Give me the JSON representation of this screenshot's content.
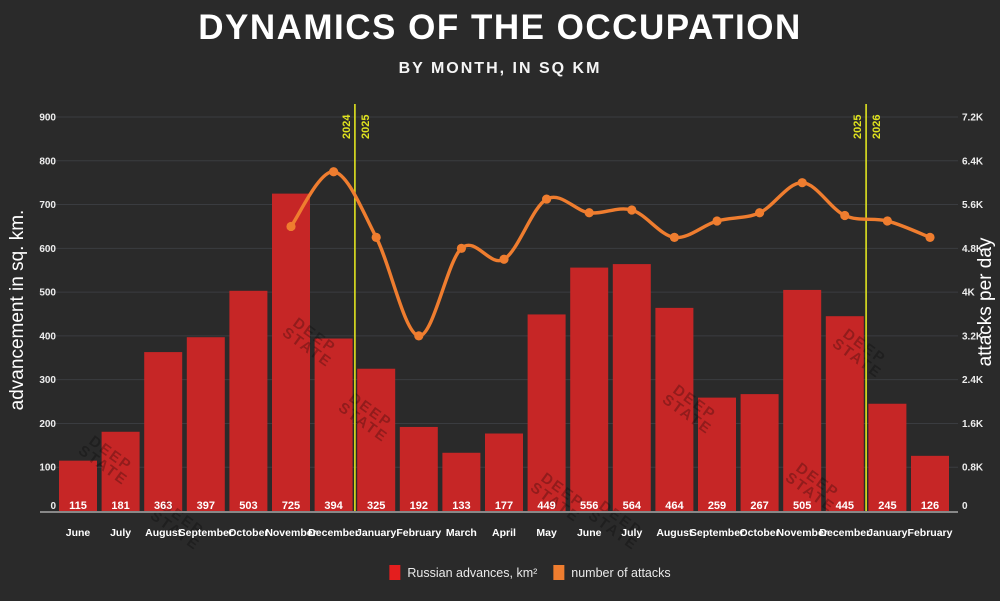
{
  "chart_data": {
    "type": "bar+line",
    "title": "DYNAMICS OF THE OCCUPATION",
    "subtitle": "BY MONTH, IN SQ KM",
    "categories": [
      "June",
      "July",
      "August",
      "September",
      "October",
      "November",
      "December",
      "January",
      "February",
      "March",
      "April",
      "May",
      "June",
      "July",
      "August",
      "September",
      "October",
      "November",
      "December",
      "January",
      "February"
    ],
    "series": [
      {
        "name": "Russian advances, km²",
        "type": "bar",
        "axis": "left",
        "color": "#c62626",
        "values": [
          115,
          181,
          363,
          397,
          503,
          725,
          394,
          325,
          192,
          133,
          177,
          449,
          556,
          564,
          464,
          259,
          267,
          505,
          445,
          245,
          126
        ]
      },
      {
        "name": "number of attacks",
        "type": "line",
        "axis": "right",
        "color": "#ef7d2f",
        "values": [
          null,
          null,
          null,
          null,
          null,
          5200,
          6200,
          5000,
          3200,
          4800,
          4600,
          5700,
          5450,
          5500,
          5000,
          5300,
          5450,
          6000,
          5400,
          5300,
          5000
        ]
      }
    ],
    "left_axis": {
      "label": "advancement in sq. km.",
      "min": 0,
      "max": 900,
      "tick_step": 100,
      "tick_labels": [
        "0",
        "100",
        "200",
        "300",
        "400",
        "500",
        "600",
        "700",
        "800",
        "900"
      ]
    },
    "right_axis": {
      "label": "attacks per day",
      "min": 0,
      "max": 7200,
      "tick_step": 800,
      "tick_labels": [
        "0",
        "0.8K",
        "1.6K",
        "2.4K",
        "3.2K",
        "4K",
        "4.8K",
        "5.6K",
        "6.4K",
        "7.2K"
      ]
    },
    "year_dividers": [
      {
        "after_category_index": 6,
        "left_label": "2024",
        "right_label": "2025"
      },
      {
        "after_category_index": 18,
        "left_label": "2025",
        "right_label": "2026"
      }
    ],
    "grid": "horizontal",
    "legend_position": "bottom",
    "watermark": {
      "line1": "DEEP",
      "line2": "STATE"
    }
  },
  "colors": {
    "background": "#2a2a2a",
    "text": "#ffffff",
    "gridline": "#3a3c40",
    "baseline": "#a8a8a8",
    "divider_yellow": "#e0e31f",
    "legend_advances_swatch": "#e41e1e",
    "legend_attacks_swatch": "#ef7d2f"
  }
}
